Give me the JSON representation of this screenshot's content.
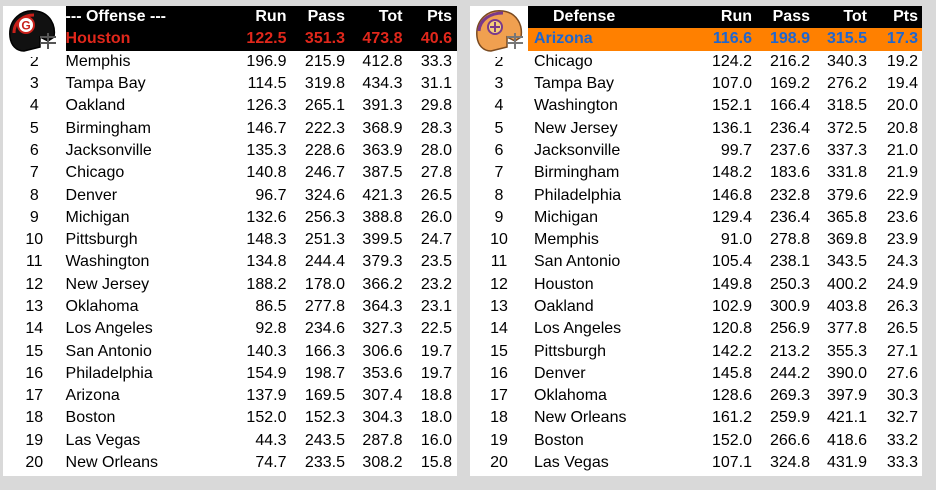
{
  "offense": {
    "title": "--- Offense ---",
    "columns": [
      "Run",
      "Pass",
      "Tot",
      "Pts"
    ],
    "leader": {
      "team": "Houston",
      "run": "122.5",
      "pass": "351.3",
      "tot": "473.8",
      "pts": "40.6"
    },
    "rows": [
      {
        "rank": "2",
        "team": "Memphis",
        "run": "196.9",
        "pass": "215.9",
        "tot": "412.8",
        "pts": "33.3"
      },
      {
        "rank": "3",
        "team": "Tampa Bay",
        "run": "114.5",
        "pass": "319.8",
        "tot": "434.3",
        "pts": "31.1"
      },
      {
        "rank": "4",
        "team": "Oakland",
        "run": "126.3",
        "pass": "265.1",
        "tot": "391.3",
        "pts": "29.8"
      },
      {
        "rank": "5",
        "team": "Birmingham",
        "run": "146.7",
        "pass": "222.3",
        "tot": "368.9",
        "pts": "28.3"
      },
      {
        "rank": "6",
        "team": "Jacksonville",
        "run": "135.3",
        "pass": "228.6",
        "tot": "363.9",
        "pts": "28.0"
      },
      {
        "rank": "7",
        "team": "Chicago",
        "run": "140.8",
        "pass": "246.7",
        "tot": "387.5",
        "pts": "27.8"
      },
      {
        "rank": "8",
        "team": "Denver",
        "run": "96.7",
        "pass": "324.6",
        "tot": "421.3",
        "pts": "26.5"
      },
      {
        "rank": "9",
        "team": "Michigan",
        "run": "132.6",
        "pass": "256.3",
        "tot": "388.8",
        "pts": "26.0"
      },
      {
        "rank": "10",
        "team": "Pittsburgh",
        "run": "148.3",
        "pass": "251.3",
        "tot": "399.5",
        "pts": "24.7"
      },
      {
        "rank": "11",
        "team": "Washington",
        "run": "134.8",
        "pass": "244.4",
        "tot": "379.3",
        "pts": "23.5"
      },
      {
        "rank": "12",
        "team": "New Jersey",
        "run": "188.2",
        "pass": "178.0",
        "tot": "366.2",
        "pts": "23.2"
      },
      {
        "rank": "13",
        "team": "Oklahoma",
        "run": "86.5",
        "pass": "277.8",
        "tot": "364.3",
        "pts": "23.1"
      },
      {
        "rank": "14",
        "team": "Los Angeles",
        "run": "92.8",
        "pass": "234.6",
        "tot": "327.3",
        "pts": "22.5"
      },
      {
        "rank": "15",
        "team": "San Antonio",
        "run": "140.3",
        "pass": "166.3",
        "tot": "306.6",
        "pts": "19.7"
      },
      {
        "rank": "16",
        "team": "Philadelphia",
        "run": "154.9",
        "pass": "198.7",
        "tot": "353.6",
        "pts": "19.7"
      },
      {
        "rank": "17",
        "team": "Arizona",
        "run": "137.9",
        "pass": "169.5",
        "tot": "307.4",
        "pts": "18.8"
      },
      {
        "rank": "18",
        "team": "Boston",
        "run": "152.0",
        "pass": "152.3",
        "tot": "304.3",
        "pts": "18.0"
      },
      {
        "rank": "19",
        "team": "Las Vegas",
        "run": "44.3",
        "pass": "243.5",
        "tot": "287.8",
        "pts": "16.0"
      },
      {
        "rank": "20",
        "team": "New Orleans",
        "run": "74.7",
        "pass": "233.5",
        "tot": "308.2",
        "pts": "15.8"
      }
    ]
  },
  "defense": {
    "title": "Defense",
    "columns": [
      "Run",
      "Pass",
      "Tot",
      "Pts"
    ],
    "leader": {
      "team": "Arizona",
      "run": "116.6",
      "pass": "198.9",
      "tot": "315.5",
      "pts": "17.3"
    },
    "rows": [
      {
        "rank": "2",
        "team": "Chicago",
        "run": "124.2",
        "pass": "216.2",
        "tot": "340.3",
        "pts": "19.2"
      },
      {
        "rank": "3",
        "team": "Tampa Bay",
        "run": "107.0",
        "pass": "169.2",
        "tot": "276.2",
        "pts": "19.4"
      },
      {
        "rank": "4",
        "team": "Washington",
        "run": "152.1",
        "pass": "166.4",
        "tot": "318.5",
        "pts": "20.0"
      },
      {
        "rank": "5",
        "team": "New Jersey",
        "run": "136.1",
        "pass": "236.4",
        "tot": "372.5",
        "pts": "20.8"
      },
      {
        "rank": "6",
        "team": "Jacksonville",
        "run": "99.7",
        "pass": "237.6",
        "tot": "337.3",
        "pts": "21.0"
      },
      {
        "rank": "7",
        "team": "Birmingham",
        "run": "148.2",
        "pass": "183.6",
        "tot": "331.8",
        "pts": "21.9"
      },
      {
        "rank": "8",
        "team": "Philadelphia",
        "run": "146.8",
        "pass": "232.8",
        "tot": "379.6",
        "pts": "22.9"
      },
      {
        "rank": "9",
        "team": "Michigan",
        "run": "129.4",
        "pass": "236.4",
        "tot": "365.8",
        "pts": "23.6"
      },
      {
        "rank": "10",
        "team": "Memphis",
        "run": "91.0",
        "pass": "278.8",
        "tot": "369.8",
        "pts": "23.9"
      },
      {
        "rank": "11",
        "team": "San Antonio",
        "run": "105.4",
        "pass": "238.1",
        "tot": "343.5",
        "pts": "24.3"
      },
      {
        "rank": "12",
        "team": "Houston",
        "run": "149.8",
        "pass": "250.3",
        "tot": "400.2",
        "pts": "24.9"
      },
      {
        "rank": "13",
        "team": "Oakland",
        "run": "102.9",
        "pass": "300.9",
        "tot": "403.8",
        "pts": "26.3"
      },
      {
        "rank": "14",
        "team": "Los Angeles",
        "run": "120.8",
        "pass": "256.9",
        "tot": "377.8",
        "pts": "26.5"
      },
      {
        "rank": "15",
        "team": "Pittsburgh",
        "run": "142.2",
        "pass": "213.2",
        "tot": "355.3",
        "pts": "27.1"
      },
      {
        "rank": "16",
        "team": "Denver",
        "run": "145.8",
        "pass": "244.2",
        "tot": "390.0",
        "pts": "27.6"
      },
      {
        "rank": "17",
        "team": "Oklahoma",
        "run": "128.6",
        "pass": "269.3",
        "tot": "397.9",
        "pts": "30.3"
      },
      {
        "rank": "18",
        "team": "New Orleans",
        "run": "161.2",
        "pass": "259.9",
        "tot": "421.1",
        "pts": "32.7"
      },
      {
        "rank": "19",
        "team": "Boston",
        "run": "152.0",
        "pass": "266.6",
        "tot": "418.6",
        "pts": "33.2"
      },
      {
        "rank": "20",
        "team": "Las Vegas",
        "run": "107.1",
        "pass": "324.8",
        "tot": "431.9",
        "pts": "33.3"
      }
    ]
  },
  "icons": {
    "offense_helmet": "houston-helmet-icon",
    "defense_helmet": "arizona-helmet-icon"
  },
  "colors": {
    "offense_leader_bg": "#000000",
    "offense_leader_text": "#e0271b",
    "defense_leader_bg": "#ff8000",
    "defense_leader_text": "#1e66d0"
  }
}
